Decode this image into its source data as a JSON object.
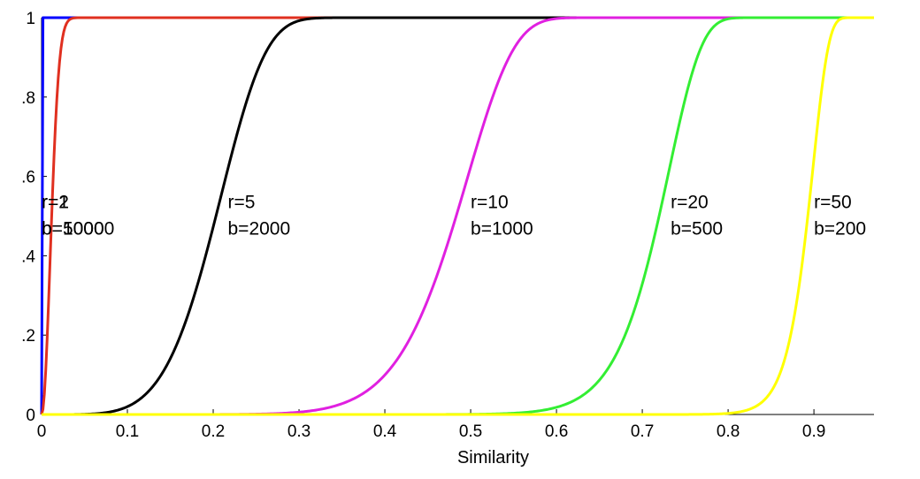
{
  "chart_data": {
    "type": "line",
    "title": "",
    "xlabel": "Similarity",
    "ylabel": "",
    "xlim": [
      0,
      0.97
    ],
    "ylim": [
      0,
      1
    ],
    "x_ticks": [
      "0",
      "0.1",
      "0.2",
      "0.3",
      "0.4",
      "0.5",
      "0.6",
      "0.7",
      "0.8",
      "0.9"
    ],
    "y_ticks": [
      "0",
      ".2",
      ".4",
      ".6",
      ".8",
      "1"
    ],
    "grid": false,
    "legend": "none",
    "series": [
      {
        "color": "#0000ff",
        "r": 1,
        "b": 10000
      },
      {
        "color": "#e03020",
        "r": 2,
        "b": 5000
      },
      {
        "color": "#000000",
        "r": 5,
        "b": 2000
      },
      {
        "color": "#e020e0",
        "r": 10,
        "b": 1000
      },
      {
        "color": "#33ee33",
        "r": 20,
        "b": 500
      },
      {
        "color": "#ffff00",
        "r": 50,
        "b": 200
      }
    ],
    "annotations": [
      {
        "r_text": "r=1",
        "b_text": "b=10000",
        "x": 0.0,
        "y": 0.52
      },
      {
        "r_text": "r=2",
        "b_text": "b=5000",
        "x": 0.0,
        "y": 0.52
      },
      {
        "r_text": "r=5",
        "b_text": "b=2000",
        "x": 0.217,
        "y": 0.52
      },
      {
        "r_text": "r=10",
        "b_text": "b=1000",
        "x": 0.5,
        "y": 0.52
      },
      {
        "r_text": "r=20",
        "b_text": "b=500",
        "x": 0.733,
        "y": 0.52
      },
      {
        "r_text": "r=50",
        "b_text": "b=200",
        "x": 0.9,
        "y": 0.52
      }
    ]
  }
}
